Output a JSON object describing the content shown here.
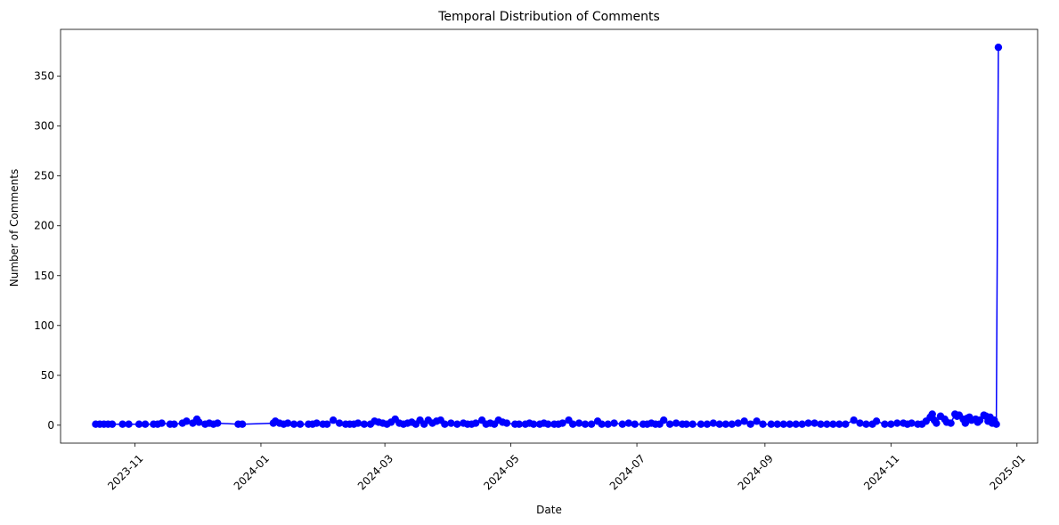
{
  "chart_data": {
    "type": "line",
    "title": "Temporal Distribution of Comments",
    "xlabel": "Date",
    "ylabel": "Number of Comments",
    "x_axis_type": "date",
    "xlim": [
      "2023-09-26",
      "2025-01-11"
    ],
    "ylim": [
      -18,
      397
    ],
    "x_ticks": [
      "2023-11",
      "2024-01",
      "2024-03",
      "2024-05",
      "2024-07",
      "2024-09",
      "2024-11",
      "2025-01"
    ],
    "y_ticks": [
      0,
      50,
      100,
      150,
      200,
      250,
      300,
      350
    ],
    "x_tick_rotation": 45,
    "grid": false,
    "legend": "none",
    "color": "#0000ff",
    "marker": "circle",
    "series": [
      {
        "points": [
          [
            "2023-10-13",
            1
          ],
          [
            "2023-10-15",
            1
          ],
          [
            "2023-10-17",
            1
          ],
          [
            "2023-10-19",
            1
          ],
          [
            "2023-10-21",
            1
          ],
          [
            "2023-10-26",
            1
          ],
          [
            "2023-10-29",
            1
          ],
          [
            "2023-11-03",
            1
          ],
          [
            "2023-11-06",
            1
          ],
          [
            "2023-11-10",
            1
          ],
          [
            "2023-11-12",
            1
          ],
          [
            "2023-11-14",
            2
          ],
          [
            "2023-11-18",
            1
          ],
          [
            "2023-11-20",
            1
          ],
          [
            "2023-11-24",
            2
          ],
          [
            "2023-11-26",
            4
          ],
          [
            "2023-11-29",
            2
          ],
          [
            "2023-12-01",
            6
          ],
          [
            "2023-12-02",
            3
          ],
          [
            "2023-12-05",
            1
          ],
          [
            "2023-12-07",
            2
          ],
          [
            "2023-12-09",
            1
          ],
          [
            "2023-12-11",
            2
          ],
          [
            "2023-12-21",
            1
          ],
          [
            "2023-12-23",
            1
          ],
          [
            "2024-01-07",
            2
          ],
          [
            "2024-01-08",
            4
          ],
          [
            "2024-01-10",
            2
          ],
          [
            "2024-01-12",
            1
          ],
          [
            "2024-01-14",
            2
          ],
          [
            "2024-01-17",
            1
          ],
          [
            "2024-01-20",
            1
          ],
          [
            "2024-01-24",
            1
          ],
          [
            "2024-01-26",
            1
          ],
          [
            "2024-01-28",
            2
          ],
          [
            "2024-01-31",
            1
          ],
          [
            "2024-02-02",
            1
          ],
          [
            "2024-02-05",
            5
          ],
          [
            "2024-02-08",
            2
          ],
          [
            "2024-02-11",
            1
          ],
          [
            "2024-02-13",
            1
          ],
          [
            "2024-02-15",
            1
          ],
          [
            "2024-02-17",
            2
          ],
          [
            "2024-02-20",
            1
          ],
          [
            "2024-02-23",
            1
          ],
          [
            "2024-02-25",
            4
          ],
          [
            "2024-02-27",
            3
          ],
          [
            "2024-02-29",
            2
          ],
          [
            "2024-03-02",
            1
          ],
          [
            "2024-03-04",
            3
          ],
          [
            "2024-03-06",
            6
          ],
          [
            "2024-03-08",
            2
          ],
          [
            "2024-03-10",
            1
          ],
          [
            "2024-03-12",
            2
          ],
          [
            "2024-03-14",
            3
          ],
          [
            "2024-03-16",
            1
          ],
          [
            "2024-03-18",
            5
          ],
          [
            "2024-03-20",
            1
          ],
          [
            "2024-03-22",
            5
          ],
          [
            "2024-03-24",
            2
          ],
          [
            "2024-03-26",
            4
          ],
          [
            "2024-03-28",
            5
          ],
          [
            "2024-03-30",
            1
          ],
          [
            "2024-04-02",
            2
          ],
          [
            "2024-04-05",
            1
          ],
          [
            "2024-04-08",
            2
          ],
          [
            "2024-04-10",
            1
          ],
          [
            "2024-04-12",
            1
          ],
          [
            "2024-04-14",
            2
          ],
          [
            "2024-04-17",
            5
          ],
          [
            "2024-04-19",
            1
          ],
          [
            "2024-04-21",
            2
          ],
          [
            "2024-04-23",
            1
          ],
          [
            "2024-04-25",
            5
          ],
          [
            "2024-04-27",
            3
          ],
          [
            "2024-04-29",
            2
          ],
          [
            "2024-05-03",
            1
          ],
          [
            "2024-05-05",
            1
          ],
          [
            "2024-05-08",
            1
          ],
          [
            "2024-05-10",
            2
          ],
          [
            "2024-05-12",
            1
          ],
          [
            "2024-05-15",
            1
          ],
          [
            "2024-05-17",
            2
          ],
          [
            "2024-05-19",
            1
          ],
          [
            "2024-05-22",
            1
          ],
          [
            "2024-05-24",
            1
          ],
          [
            "2024-05-26",
            2
          ],
          [
            "2024-05-29",
            5
          ],
          [
            "2024-05-31",
            1
          ],
          [
            "2024-06-03",
            2
          ],
          [
            "2024-06-06",
            1
          ],
          [
            "2024-06-09",
            1
          ],
          [
            "2024-06-12",
            4
          ],
          [
            "2024-06-14",
            1
          ],
          [
            "2024-06-17",
            1
          ],
          [
            "2024-06-20",
            2
          ],
          [
            "2024-06-24",
            1
          ],
          [
            "2024-06-27",
            2
          ],
          [
            "2024-06-30",
            1
          ],
          [
            "2024-07-04",
            1
          ],
          [
            "2024-07-06",
            1
          ],
          [
            "2024-07-08",
            2
          ],
          [
            "2024-07-10",
            1
          ],
          [
            "2024-07-12",
            1
          ],
          [
            "2024-07-14",
            5
          ],
          [
            "2024-07-17",
            1
          ],
          [
            "2024-07-20",
            2
          ],
          [
            "2024-07-23",
            1
          ],
          [
            "2024-07-25",
            1
          ],
          [
            "2024-07-28",
            1
          ],
          [
            "2024-08-01",
            1
          ],
          [
            "2024-08-04",
            1
          ],
          [
            "2024-08-07",
            2
          ],
          [
            "2024-08-10",
            1
          ],
          [
            "2024-08-13",
            1
          ],
          [
            "2024-08-16",
            1
          ],
          [
            "2024-08-19",
            2
          ],
          [
            "2024-08-22",
            4
          ],
          [
            "2024-08-25",
            1
          ],
          [
            "2024-08-28",
            4
          ],
          [
            "2024-08-31",
            1
          ],
          [
            "2024-09-04",
            1
          ],
          [
            "2024-09-07",
            1
          ],
          [
            "2024-09-10",
            1
          ],
          [
            "2024-09-13",
            1
          ],
          [
            "2024-09-16",
            1
          ],
          [
            "2024-09-19",
            1
          ],
          [
            "2024-09-22",
            2
          ],
          [
            "2024-09-25",
            2
          ],
          [
            "2024-09-28",
            1
          ],
          [
            "2024-10-01",
            1
          ],
          [
            "2024-10-04",
            1
          ],
          [
            "2024-10-07",
            1
          ],
          [
            "2024-10-10",
            1
          ],
          [
            "2024-10-14",
            5
          ],
          [
            "2024-10-17",
            2
          ],
          [
            "2024-10-20",
            1
          ],
          [
            "2024-10-23",
            1
          ],
          [
            "2024-10-25",
            4
          ],
          [
            "2024-10-29",
            1
          ],
          [
            "2024-11-01",
            1
          ],
          [
            "2024-11-04",
            2
          ],
          [
            "2024-11-07",
            2
          ],
          [
            "2024-11-09",
            1
          ],
          [
            "2024-11-11",
            2
          ],
          [
            "2024-11-14",
            1
          ],
          [
            "2024-11-16",
            1
          ],
          [
            "2024-11-18",
            4
          ],
          [
            "2024-11-20",
            8
          ],
          [
            "2024-11-21",
            11
          ],
          [
            "2024-11-22",
            5
          ],
          [
            "2024-11-23",
            2
          ],
          [
            "2024-11-25",
            9
          ],
          [
            "2024-11-27",
            6
          ],
          [
            "2024-11-28",
            3
          ],
          [
            "2024-11-30",
            2
          ],
          [
            "2024-12-02",
            11
          ],
          [
            "2024-12-03",
            9
          ],
          [
            "2024-12-04",
            10
          ],
          [
            "2024-12-06",
            6
          ],
          [
            "2024-12-07",
            2
          ],
          [
            "2024-12-08",
            7
          ],
          [
            "2024-12-09",
            8
          ],
          [
            "2024-12-10",
            5
          ],
          [
            "2024-12-12",
            6
          ],
          [
            "2024-12-13",
            3
          ],
          [
            "2024-12-14",
            5
          ],
          [
            "2024-12-16",
            10
          ],
          [
            "2024-12-17",
            9
          ],
          [
            "2024-12-18",
            4
          ],
          [
            "2024-12-19",
            8
          ],
          [
            "2024-12-20",
            2
          ],
          [
            "2024-12-21",
            5
          ],
          [
            "2024-12-22",
            1
          ],
          [
            "2024-12-23",
            379
          ]
        ]
      }
    ]
  }
}
